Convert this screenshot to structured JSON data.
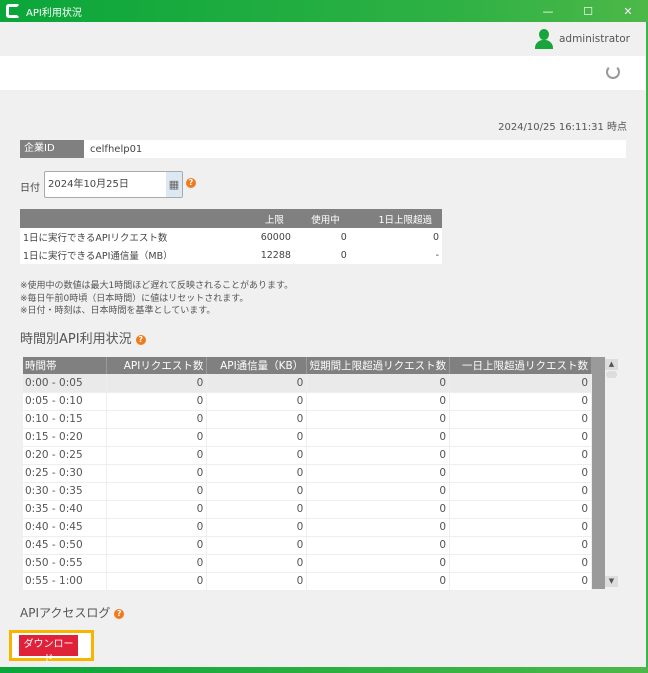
{
  "window": {
    "title": "API利用状況",
    "controls": [
      "—",
      "☐",
      "✕"
    ]
  },
  "user": {
    "name": "administrator"
  },
  "timestamp": "2024/10/25 16:11:31 時点",
  "company": {
    "label": "企業ID",
    "value": "celfhelp01"
  },
  "date": {
    "label": "日付",
    "value": "2024年10月25日"
  },
  "summary": {
    "headers": [
      "",
      "上限",
      "使用中",
      "1日上限超過"
    ],
    "rows": [
      [
        "1日に実行できるAPIリクエスト数",
        "60000",
        "0",
        "0"
      ],
      [
        "1日に実行できるAPI通信量（MB）",
        "12288",
        "0",
        "-"
      ]
    ]
  },
  "notes": [
    "※使用中の数値は最大1時間ほど遅れて反映されることがあります。",
    "※毎日午前0時頃（日本時間）に値はリセットされます。",
    "※日付・時刻は、日本時間を基準としています。"
  ],
  "hourly": {
    "title": "時間別API利用状況",
    "headers": [
      "時間帯",
      "APIリクエスト数",
      "API通信量（KB）",
      "短期間上限超過リクエスト数",
      "一日上限超過リクエスト数"
    ],
    "rows": [
      [
        "0:00 - 0:05",
        "0",
        "0",
        "0",
        "0"
      ],
      [
        "0:05 - 0:10",
        "0",
        "0",
        "0",
        "0"
      ],
      [
        "0:10 - 0:15",
        "0",
        "0",
        "0",
        "0"
      ],
      [
        "0:15 - 0:20",
        "0",
        "0",
        "0",
        "0"
      ],
      [
        "0:20 - 0:25",
        "0",
        "0",
        "0",
        "0"
      ],
      [
        "0:25 - 0:30",
        "0",
        "0",
        "0",
        "0"
      ],
      [
        "0:30 - 0:35",
        "0",
        "0",
        "0",
        "0"
      ],
      [
        "0:35 - 0:40",
        "0",
        "0",
        "0",
        "0"
      ],
      [
        "0:40 - 0:45",
        "0",
        "0",
        "0",
        "0"
      ],
      [
        "0:45 - 0:50",
        "0",
        "0",
        "0",
        "0"
      ],
      [
        "0:50 - 0:55",
        "0",
        "0",
        "0",
        "0"
      ],
      [
        "0:55 - 1:00",
        "0",
        "0",
        "0",
        "0"
      ]
    ]
  },
  "log": {
    "title": "APIアクセスログ",
    "download_label": "ダウンロード"
  },
  "colors": {
    "brand": "#0aa63a",
    "download": "#e0213a",
    "highlight": "#f7b500",
    "help": "#f07b1c"
  }
}
